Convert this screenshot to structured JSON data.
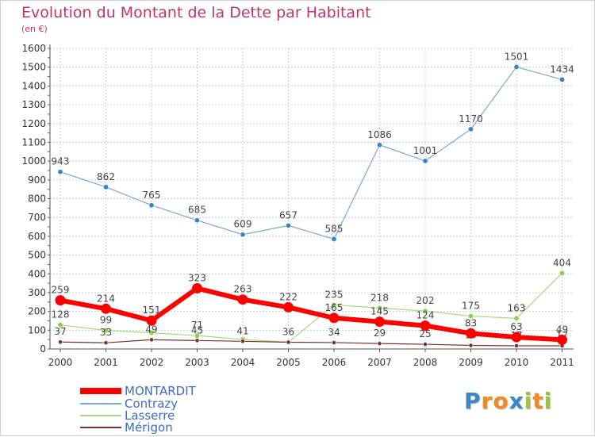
{
  "header": {
    "title": "Evolution du Montant de la Dette par Habitant",
    "subtitle": "(en €)"
  },
  "colors": {
    "title": "#c0336c",
    "axis": "#555555",
    "grid": "#cccccc",
    "montardit": "#ff0000",
    "contrazy": "#7aa9d4",
    "lasserre": "#a6d97a",
    "merigon": "#7b3030"
  },
  "chart_data": {
    "type": "line",
    "title": "Evolution du Montant de la Dette par Habitant",
    "subtitle": "(en €)",
    "xlabel": "",
    "ylabel": "",
    "x": [
      "2000",
      "2001",
      "2002",
      "2003",
      "2004",
      "2005",
      "2006",
      "2007",
      "2008",
      "2009",
      "2010",
      "2011"
    ],
    "ylim": [
      0,
      1600
    ],
    "yticks": [
      0,
      100,
      200,
      300,
      400,
      500,
      600,
      700,
      800,
      900,
      1000,
      1100,
      1200,
      1300,
      1400,
      1500,
      1600
    ],
    "grid": true,
    "legend_position": "bottom-left",
    "series": [
      {
        "name": "Contrazy",
        "values": [
          943,
          862,
          765,
          685,
          609,
          657,
          585,
          1086,
          1001,
          1170,
          1501,
          1434
        ],
        "labels": [
          "943",
          "862",
          "765",
          "685",
          "609",
          "657",
          "585",
          "1086",
          "1001",
          "1170",
          "1501",
          "1434"
        ],
        "color": "#7aa9d4",
        "marker": "#3b83c4",
        "width": 1.2,
        "radius": 3.2
      },
      {
        "name": "Lasserre",
        "values": [
          128,
          99,
          86,
          71,
          51,
          36,
          235,
          218,
          202,
          175,
          163,
          404
        ],
        "labels": [
          "128",
          "99",
          "",
          "71",
          "",
          "",
          "235",
          "218",
          "202",
          "175",
          "163",
          "404"
        ],
        "color": "#a6d97a",
        "marker": "#8fcf50",
        "width": 1.2,
        "radius": 3.2
      },
      {
        "name": "Mérigon",
        "values": [
          37,
          33,
          49,
          45,
          41,
          36,
          34,
          29,
          25,
          19,
          17,
          17
        ],
        "labels": [
          "37",
          "33",
          "49",
          "45",
          "41",
          "36",
          "34",
          "29",
          "25",
          "19",
          "17",
          "17"
        ],
        "color": "#7b3030",
        "marker": "#7b3030",
        "width": 1.2,
        "radius": 2.6
      },
      {
        "name": "MONTARDIT",
        "values": [
          259,
          214,
          151,
          323,
          263,
          222,
          165,
          145,
          124,
          83,
          63,
          49
        ],
        "labels": [
          "259",
          "214",
          "151",
          "323",
          "263",
          "222",
          "165",
          "145",
          "124",
          "83",
          "63",
          "49"
        ],
        "color": "#ff0000",
        "marker": "#ff0000",
        "width": 6,
        "radius": 6.5
      }
    ]
  },
  "legend": {
    "items": [
      {
        "label": "MONTARDIT",
        "color": "#ff0000",
        "label_color": "#3b6cc4"
      },
      {
        "label": "Contrazy",
        "color": "#7aa9d4",
        "label_color": "#3b6cc4"
      },
      {
        "label": "Lasserre",
        "color": "#a6d97a",
        "label_color": "#3b6cc4"
      },
      {
        "label": "Mérigon",
        "color": "#7b3030",
        "label_color": "#3b6cc4"
      }
    ]
  },
  "logo": {
    "text": "Proxiti",
    "letters": [
      {
        "ch": "P",
        "color": "#3a87c8"
      },
      {
        "ch": "r",
        "color": "#f08a24"
      },
      {
        "ch": "o",
        "color": "#f08a24"
      },
      {
        "ch": "x",
        "color": "#3a87c8"
      },
      {
        "ch": "i",
        "color": "#9bc53d"
      },
      {
        "ch": "t",
        "color": "#f08a24"
      },
      {
        "ch": "i",
        "color": "#9bc53d"
      }
    ]
  }
}
